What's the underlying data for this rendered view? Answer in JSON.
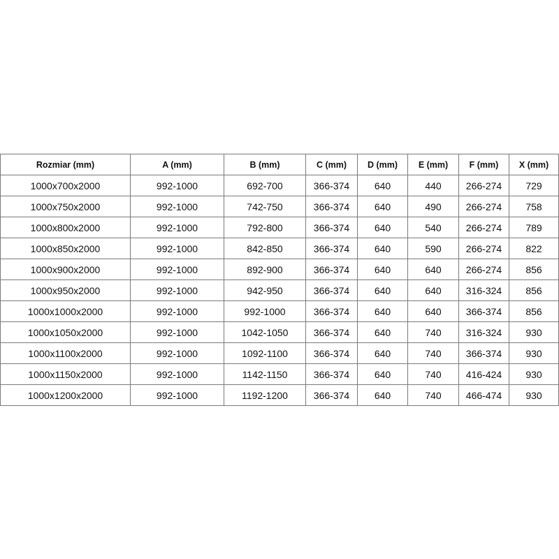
{
  "table": {
    "headers": [
      "Rozmiar (mm)",
      "A (mm)",
      "B (mm)",
      "C (mm)",
      "D (mm)",
      "E (mm)",
      "F (mm)",
      "X (mm)"
    ],
    "rows": [
      [
        "1000x700x2000",
        "992-1000",
        "692-700",
        "366-374",
        "640",
        "440",
        "266-274",
        "729"
      ],
      [
        "1000x750x2000",
        "992-1000",
        "742-750",
        "366-374",
        "640",
        "490",
        "266-274",
        "758"
      ],
      [
        "1000x800x2000",
        "992-1000",
        "792-800",
        "366-374",
        "640",
        "540",
        "266-274",
        "789"
      ],
      [
        "1000x850x2000",
        "992-1000",
        "842-850",
        "366-374",
        "640",
        "590",
        "266-274",
        "822"
      ],
      [
        "1000x900x2000",
        "992-1000",
        "892-900",
        "366-374",
        "640",
        "640",
        "266-274",
        "856"
      ],
      [
        "1000x950x2000",
        "992-1000",
        "942-950",
        "366-374",
        "640",
        "640",
        "316-324",
        "856"
      ],
      [
        "1000x1000x2000",
        "992-1000",
        "992-1000",
        "366-374",
        "640",
        "640",
        "366-374",
        "856"
      ],
      [
        "1000x1050x2000",
        "992-1000",
        "1042-1050",
        "366-374",
        "640",
        "740",
        "316-324",
        "930"
      ],
      [
        "1000x1100x2000",
        "992-1000",
        "1092-1100",
        "366-374",
        "640",
        "740",
        "366-374",
        "930"
      ],
      [
        "1000x1150x2000",
        "992-1000",
        "1142-1150",
        "366-374",
        "640",
        "740",
        "416-424",
        "930"
      ],
      [
        "1000x1200x2000",
        "992-1000",
        "1192-1200",
        "366-374",
        "640",
        "740",
        "466-474",
        "930"
      ]
    ]
  }
}
